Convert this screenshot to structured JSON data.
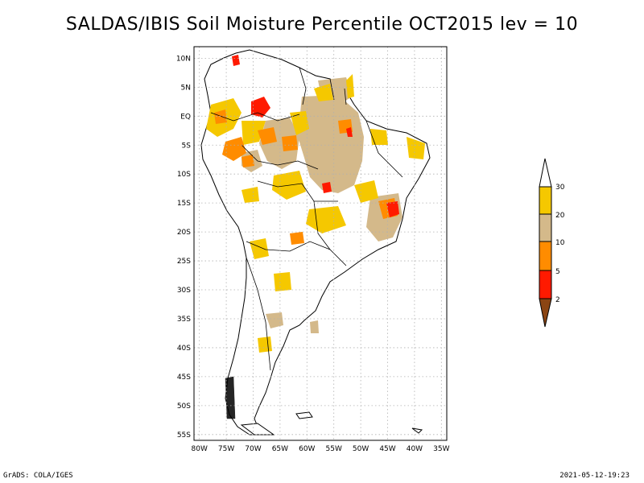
{
  "title": "SALDAS/IBIS Soil Moisture Percentile OCT2015 lev = 10",
  "footer": {
    "left": "GrADS: COLA/IGES",
    "right": "2021-05-12-19:23"
  },
  "map": {
    "lat_labels": [
      "10N",
      "5N",
      "EQ",
      "5S",
      "10S",
      "15S",
      "20S",
      "25S",
      "30S",
      "35S",
      "40S",
      "45S",
      "50S",
      "55S"
    ],
    "lat_values": [
      10,
      5,
      0,
      -5,
      -10,
      -15,
      -20,
      -25,
      -30,
      -35,
      -40,
      -45,
      -50,
      -55
    ],
    "lon_labels": [
      "80W",
      "75W",
      "70W",
      "65W",
      "60W",
      "55W",
      "50W",
      "45W",
      "40W",
      "35W"
    ],
    "lon_values": [
      -80,
      -75,
      -70,
      -65,
      -60,
      -55,
      -50,
      -45,
      -40,
      -35
    ],
    "extent": {
      "lon_min": -81,
      "lon_max": -34,
      "lat_min": -56,
      "lat_max": 12
    }
  },
  "legend": {
    "labels": [
      "30",
      "20",
      "10",
      "5",
      "2"
    ],
    "colors": {
      "above30": "#ffffff",
      "c20_30": "#f5c800",
      "c10_20": "#d4b98a",
      "c5_10": "#ff8c00",
      "c2_5": "#ff1a00",
      "below2": "#8b4513"
    }
  }
}
